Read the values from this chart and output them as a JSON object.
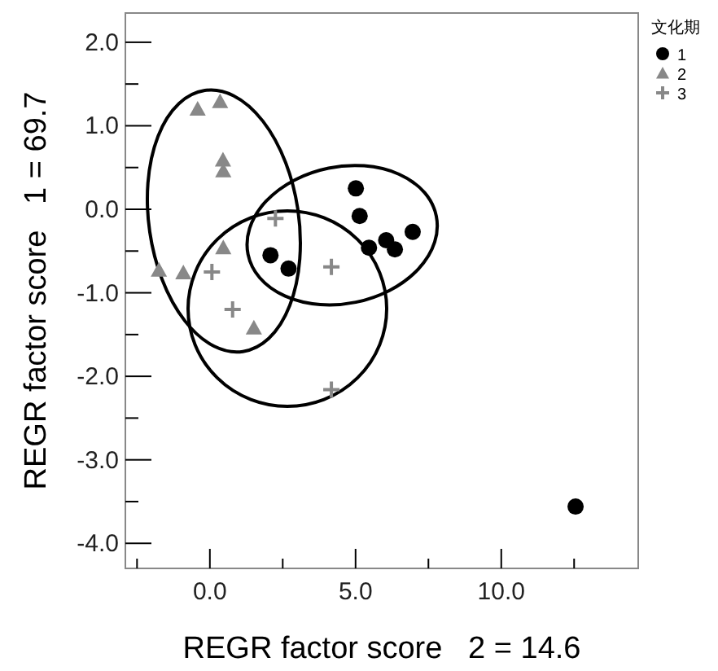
{
  "chart_data": {
    "type": "scatter",
    "xlabel": "REGR factor score   2 = 14.6",
    "ylabel": "REGR factor score   1 = 69.7",
    "legend_title": "文化期",
    "legend": "top right",
    "grid": false,
    "xlim": [
      -2.9,
      14.7
    ],
    "ylim": [
      -4.3,
      2.35
    ],
    "xticks": [
      {
        "value": -2.5,
        "label": null
      },
      {
        "value": 0,
        "label": "0.0"
      },
      {
        "value": 2.5,
        "label": null
      },
      {
        "value": 5,
        "label": "5.0"
      },
      {
        "value": 7.5,
        "label": null
      },
      {
        "value": 10,
        "label": "10.0"
      },
      {
        "value": 12.5,
        "label": null
      }
    ],
    "yticks": [
      {
        "value": -4,
        "label": "-4.0"
      },
      {
        "value": -3.5,
        "label": null
      },
      {
        "value": -3,
        "label": "-3.0"
      },
      {
        "value": -2.5,
        "label": null
      },
      {
        "value": -2,
        "label": "-2.0"
      },
      {
        "value": -1.5,
        "label": null
      },
      {
        "value": -1,
        "label": "-1.0"
      },
      {
        "value": -0.5,
        "label": null
      },
      {
        "value": 0,
        "label": "0.0"
      },
      {
        "value": 0.5,
        "label": null
      },
      {
        "value": 1,
        "label": "1.0"
      },
      {
        "value": 1.5,
        "label": null
      },
      {
        "value": 2,
        "label": "2.0"
      }
    ],
    "series": [
      {
        "name": "1",
        "color": "#000000",
        "marker": "circle",
        "x": [
          5.01,
          5.14,
          2.08,
          2.7,
          5.46,
          6.05,
          6.35,
          6.96,
          12.55
        ],
        "values": [
          0.25,
          -0.08,
          -0.55,
          -0.71,
          -0.46,
          -0.37,
          -0.48,
          -0.27,
          -3.56
        ]
      },
      {
        "name": "2",
        "color": "#888888",
        "marker": "triangle",
        "x": [
          -0.42,
          0.35,
          0.45,
          0.46,
          0.46,
          -1.75,
          -0.91,
          1.51
        ],
        "values": [
          1.2,
          1.29,
          0.59,
          0.46,
          -0.46,
          -0.73,
          -0.76,
          -1.42
        ]
      },
      {
        "name": "3",
        "color": "#888888",
        "marker": "cross",
        "x": [
          2.25,
          0.07,
          0.78,
          4.17,
          4.17
        ],
        "values": [
          -0.11,
          -0.75,
          -1.2,
          -0.69,
          -2.16
        ]
      }
    ]
  }
}
